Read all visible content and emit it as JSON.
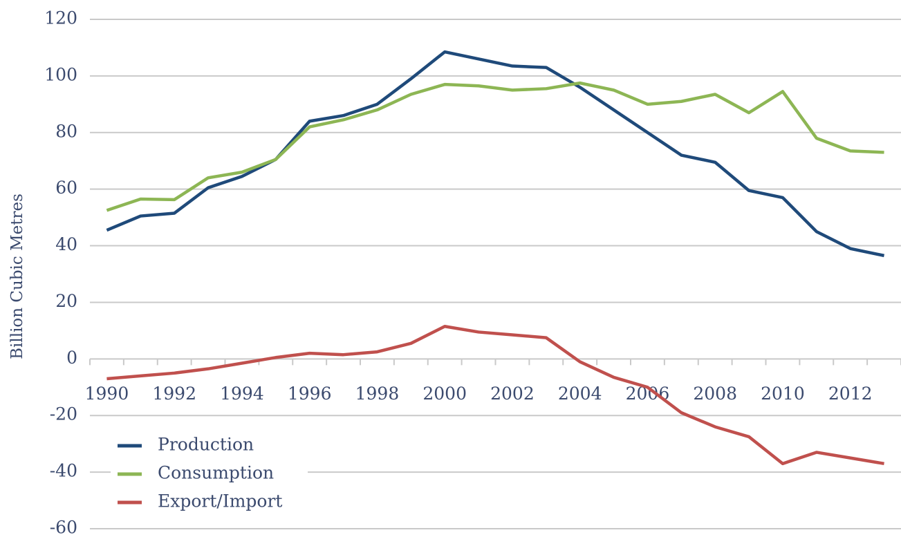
{
  "chart_data": {
    "type": "line",
    "y_label": "Billion Cubic Metres",
    "categories": [
      "1990",
      null,
      "1992",
      null,
      "1994",
      null,
      "1996",
      null,
      "1998",
      null,
      "2000",
      null,
      "2002",
      null,
      "2004",
      null,
      "2006",
      null,
      "2008",
      null,
      "2010",
      null,
      "2012",
      null
    ],
    "series": [
      {
        "name": "Production",
        "color": "#1f4a7a",
        "values": [
          45.5,
          50.5,
          51.5,
          60.5,
          64.5,
          70.5,
          84,
          86,
          90,
          99,
          108.5,
          106,
          103.5,
          103,
          96,
          88,
          80,
          72,
          69.5,
          59.5,
          57,
          45,
          39,
          36.5
        ]
      },
      {
        "name": "Consumption",
        "color": "#8db654",
        "values": [
          52.5,
          56.5,
          56.3,
          64,
          66,
          70.5,
          82,
          84.5,
          88,
          93.5,
          97,
          96.5,
          95,
          95.5,
          97.5,
          95,
          90,
          91,
          93.5,
          87,
          94.5,
          78,
          73.5,
          73
        ]
      },
      {
        "name": "Export/Import",
        "color": "#c0504d",
        "values": [
          -7,
          -6,
          -5,
          -3.5,
          -1.5,
          0.5,
          2,
          1.5,
          2.5,
          5.5,
          11.5,
          9.5,
          8.5,
          7.5,
          -1,
          -6.5,
          -10,
          -19,
          -24,
          -27.5,
          -37,
          -33,
          -35,
          -37
        ]
      }
    ],
    "ylim": [
      -60,
      120
    ],
    "yticks": [
      -60,
      -40,
      -20,
      0,
      20,
      40,
      60,
      80,
      100,
      120
    ],
    "grid": true,
    "legend": "lower left"
  }
}
